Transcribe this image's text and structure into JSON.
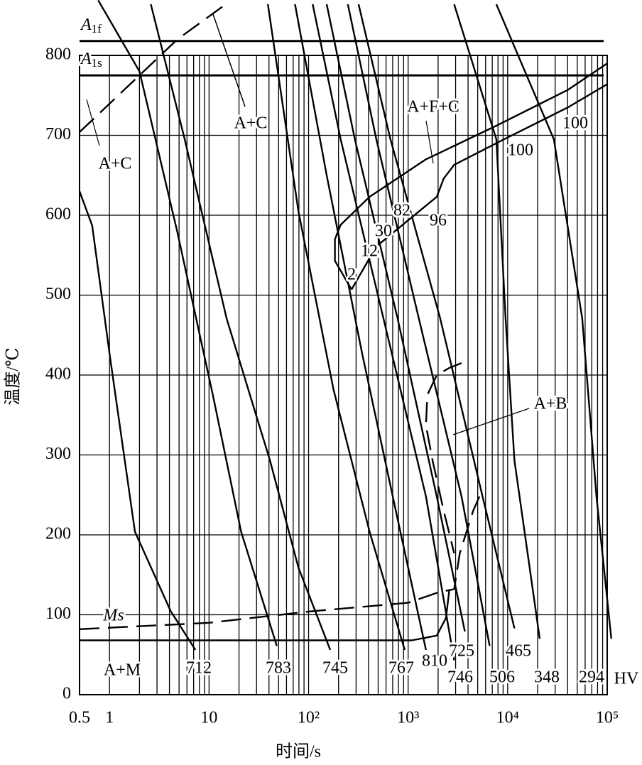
{
  "chart_data": {
    "type": "line",
    "x_label": "时间/s",
    "y_label": "温度/℃",
    "xscale": "log",
    "xlim": [
      0.5,
      100000
    ],
    "ylim": [
      0,
      800
    ],
    "xticks": [
      0.5,
      1,
      10,
      {
        "value": 100,
        "label": "10²"
      },
      {
        "value": 1000,
        "label": "10³"
      },
      {
        "value": 10000,
        "label": "10⁴"
      },
      {
        "value": 100000,
        "label": "10⁵"
      }
    ],
    "xgrid": [
      2,
      3,
      4,
      5,
      6,
      7,
      8,
      9,
      20,
      30,
      40,
      50,
      60,
      70,
      80,
      90,
      200,
      300,
      400,
      500,
      600,
      700,
      800,
      900,
      2000,
      3000,
      4000,
      5000,
      6000,
      7000,
      8000,
      9000,
      20000,
      30000,
      40000,
      50000,
      60000,
      70000,
      80000,
      90000
    ],
    "yticks": [
      0,
      100,
      200,
      300,
      400,
      500,
      600,
      700,
      800
    ],
    "grid": true,
    "color": "#000000",
    "reference_lines": [
      {
        "label": "A",
        "sub": "1f",
        "value": 818
      },
      {
        "label": "A",
        "sub": "1s",
        "value": 775
      }
    ],
    "series": [
      {
        "name": "712",
        "style": "solid",
        "x": [
          0.5,
          0.67,
          1,
          1.8,
          4.1,
          7.3
        ],
        "y": [
          630,
          587,
          427,
          204,
          105,
          56
        ]
      },
      {
        "name": "783",
        "style": "solid",
        "x": [
          0.77,
          2,
          4.8,
          11,
          21,
          48
        ],
        "y": [
          869,
          780,
          579,
          373,
          204,
          61
        ]
      },
      {
        "name": "745",
        "style": "solid",
        "x": [
          2.6,
          5.7,
          15,
          41,
          79,
          165
        ],
        "y": [
          864,
          695,
          471,
          293,
          159,
          56
        ]
      },
      {
        "name": "767",
        "style": "solid",
        "x": [
          39,
          79,
          178,
          410,
          925
        ],
        "y": [
          864,
          605,
          382,
          204,
          56
        ]
      },
      {
        "name": "810",
        "style": "solid",
        "x": [
          73,
          152,
          345,
          780,
          1510
        ],
        "y": [
          864,
          650,
          427,
          221,
          56
        ]
      },
      {
        "name": "746",
        "style": "solid",
        "x": [
          110,
          210,
          565,
          1510,
          2900
        ],
        "y": [
          864,
          695,
          471,
          248,
          43
        ]
      },
      {
        "name": "725",
        "style": "solid",
        "x": [
          152,
          292,
          783,
          1940,
          3720
        ],
        "y": [
          864,
          695,
          471,
          248,
          79
        ]
      },
      {
        "name": "506",
        "style": "solid",
        "x": [
          248,
          479,
          1280,
          3440,
          6600
        ],
        "y": [
          864,
          695,
          471,
          248,
          61
        ]
      },
      {
        "name": "465",
        "style": "solid",
        "x": [
          318,
          665,
          2100,
          5600,
          11700
        ],
        "y": [
          864,
          695,
          471,
          248,
          83
        ]
      },
      {
        "name": "348",
        "style": "solid",
        "x": [
          2900,
          7700,
          9530,
          11700,
          21000
        ],
        "y": [
          864,
          695,
          471,
          293,
          70
        ]
      },
      {
        "name": "294",
        "style": "solid",
        "x": [
          7700,
          29100,
          56100,
          78000,
          110000
        ],
        "y": [
          864,
          695,
          471,
          248,
          70
        ]
      },
      {
        "style": "solid",
        "x": [
          270,
          184,
          184,
          210,
          410,
          1510,
          7700,
          40400,
          100000
        ],
        "y": [
          507,
          543,
          570,
          588,
          623,
          670,
          712,
          757,
          790
        ]
      },
      {
        "style": "solid",
        "x": [
          270,
          479,
          1940,
          2280,
          2900,
          9200,
          40400,
          100000
        ],
        "y": [
          507,
          561,
          623,
          646,
          663,
          695,
          735,
          764
        ]
      },
      {
        "style": "dashed",
        "x": [
          3440,
          2600,
          1940,
          1560,
          1510,
          1760,
          2280,
          2900
        ],
        "y": [
          415,
          409,
          400,
          375,
          337,
          293,
          230,
          177
        ]
      },
      {
        "style": "dashed",
        "x": [
          0.5,
          10,
          100,
          1000,
          2000,
          2900,
          3300,
          4500,
          5600
        ],
        "y": [
          82,
          90,
          104,
          115,
          128,
          132,
          177,
          230,
          257
        ]
      },
      {
        "style": "solid",
        "x": [
          0.5,
          1090,
          1940,
          2400,
          2600
        ],
        "y": [
          68,
          68,
          74,
          96,
          132
        ]
      },
      {
        "style": "dashed",
        "x": [
          0.5,
          4.8,
          14.7
        ],
        "y": [
          704,
          820,
          864
        ]
      }
    ],
    "annotations": [
      "A+C",
      "A+C",
      "A+F+C",
      "A+B",
      "A+M",
      "Ms",
      "2",
      "12",
      "30",
      "82",
      "96",
      "100",
      "100",
      "HV"
    ]
  }
}
